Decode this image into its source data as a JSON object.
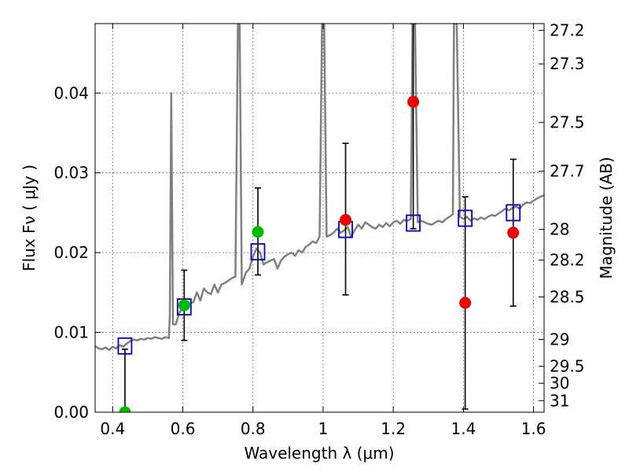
{
  "chart_data": {
    "type": "scatter",
    "title": "",
    "xlabel": "Wavelength  λ (μm)",
    "ylabel": "Flux  Fν ( μJy )",
    "ylabel_right": "Magnitude (AB)",
    "xlim": [
      0.35,
      1.63
    ],
    "ylim": [
      0.0,
      0.0487
    ],
    "grid": true,
    "x_ticks": [
      0.4,
      0.6,
      0.8,
      1.0,
      1.2,
      1.4,
      1.6
    ],
    "x_tick_labels": [
      "0.4",
      "0.6",
      "0.8",
      "1",
      "1.2",
      "1.4",
      "1.6"
    ],
    "y_ticks": [
      0.0,
      0.01,
      0.02,
      0.03,
      0.04
    ],
    "y_tick_labels": [
      "0.00",
      "0.01",
      "0.02",
      "0.03",
      "0.04"
    ],
    "right_ticks": [
      {
        "flux": 0.04785,
        "label": "27.2"
      },
      {
        "flux": 0.04365,
        "label": "27.3"
      },
      {
        "flux": 0.03631,
        "label": "27.5"
      },
      {
        "flux": 0.0302,
        "label": "27.7"
      },
      {
        "flux": 0.02291,
        "label": "28"
      },
      {
        "flux": 0.01906,
        "label": "28.2"
      },
      {
        "flux": 0.01445,
        "label": "28.5"
      },
      {
        "flux": 0.00912,
        "label": "29"
      },
      {
        "flux": 0.00575,
        "label": "29.5"
      },
      {
        "flux": 0.00363,
        "label": "30"
      },
      {
        "flux": 0.00145,
        "label": "31"
      }
    ],
    "series": [
      {
        "name": "model spectrum",
        "kind": "line",
        "color": "#808080",
        "points": [
          [
            0.35,
            0.0083
          ],
          [
            0.36,
            0.008
          ],
          [
            0.37,
            0.0079
          ],
          [
            0.38,
            0.0081
          ],
          [
            0.39,
            0.0078
          ],
          [
            0.4,
            0.0082
          ],
          [
            0.41,
            0.008
          ],
          [
            0.42,
            0.0084
          ],
          [
            0.43,
            0.0082
          ],
          [
            0.44,
            0.0086
          ],
          [
            0.45,
            0.0089
          ],
          [
            0.46,
            0.0091
          ],
          [
            0.47,
            0.009
          ],
          [
            0.48,
            0.0092
          ],
          [
            0.49,
            0.0091
          ],
          [
            0.5,
            0.0093
          ],
          [
            0.51,
            0.0092
          ],
          [
            0.52,
            0.0094
          ],
          [
            0.53,
            0.0093
          ],
          [
            0.54,
            0.0092
          ],
          [
            0.55,
            0.0094
          ],
          [
            0.56,
            0.0093
          ],
          [
            0.563,
            0.012
          ],
          [
            0.567,
            0.04
          ],
          [
            0.572,
            0.011
          ],
          [
            0.58,
            0.011
          ],
          [
            0.59,
            0.0125
          ],
          [
            0.6,
            0.013
          ],
          [
            0.61,
            0.0134
          ],
          [
            0.62,
            0.0136
          ],
          [
            0.63,
            0.0138
          ],
          [
            0.64,
            0.015
          ],
          [
            0.65,
            0.014
          ],
          [
            0.66,
            0.0155
          ],
          [
            0.67,
            0.015
          ],
          [
            0.68,
            0.0148
          ],
          [
            0.69,
            0.016
          ],
          [
            0.7,
            0.015
          ],
          [
            0.71,
            0.016
          ],
          [
            0.72,
            0.0162
          ],
          [
            0.73,
            0.0165
          ],
          [
            0.74,
            0.0168
          ],
          [
            0.75,
            0.017
          ],
          [
            0.757,
            0.0487
          ],
          [
            0.762,
            0.0487
          ],
          [
            0.768,
            0.016
          ],
          [
            0.78,
            0.0175
          ],
          [
            0.79,
            0.018
          ],
          [
            0.8,
            0.0195
          ],
          [
            0.81,
            0.0205
          ],
          [
            0.82,
            0.02
          ],
          [
            0.83,
            0.0185
          ],
          [
            0.84,
            0.0188
          ],
          [
            0.85,
            0.019
          ],
          [
            0.86,
            0.0192
          ],
          [
            0.87,
            0.018
          ],
          [
            0.88,
            0.019
          ],
          [
            0.89,
            0.0195
          ],
          [
            0.9,
            0.0198
          ],
          [
            0.91,
            0.02
          ],
          [
            0.92,
            0.0196
          ],
          [
            0.93,
            0.0203
          ],
          [
            0.94,
            0.02
          ],
          [
            0.95,
            0.0207
          ],
          [
            0.96,
            0.021
          ],
          [
            0.97,
            0.0214
          ],
          [
            0.98,
            0.0212
          ],
          [
            0.99,
            0.022
          ],
          [
            0.997,
            0.0487
          ],
          [
            1.003,
            0.0487
          ],
          [
            1.01,
            0.022
          ],
          [
            1.02,
            0.0222
          ],
          [
            1.03,
            0.0225
          ],
          [
            1.04,
            0.023
          ],
          [
            1.05,
            0.0225
          ],
          [
            1.06,
            0.0228
          ],
          [
            1.07,
            0.0232
          ],
          [
            1.08,
            0.022
          ],
          [
            1.09,
            0.0228
          ],
          [
            1.1,
            0.0235
          ],
          [
            1.11,
            0.023
          ],
          [
            1.12,
            0.0238
          ],
          [
            1.13,
            0.0235
          ],
          [
            1.14,
            0.0232
          ],
          [
            1.15,
            0.023
          ],
          [
            1.16,
            0.0235
          ],
          [
            1.17,
            0.0232
          ],
          [
            1.18,
            0.0237
          ],
          [
            1.19,
            0.0233
          ],
          [
            1.2,
            0.0238
          ],
          [
            1.21,
            0.024
          ],
          [
            1.22,
            0.0236
          ],
          [
            1.23,
            0.0241
          ],
          [
            1.24,
            0.024
          ],
          [
            1.25,
            0.0242
          ],
          [
            1.255,
            0.0487
          ],
          [
            1.262,
            0.0487
          ],
          [
            1.27,
            0.0238
          ],
          [
            1.28,
            0.024
          ],
          [
            1.29,
            0.0238
          ],
          [
            1.3,
            0.0236
          ],
          [
            1.31,
            0.0235
          ],
          [
            1.32,
            0.0238
          ],
          [
            1.33,
            0.024
          ],
          [
            1.34,
            0.0238
          ],
          [
            1.35,
            0.0242
          ],
          [
            1.36,
            0.0245
          ],
          [
            1.37,
            0.0248
          ],
          [
            1.373,
            0.0487
          ],
          [
            1.381,
            0.0487
          ],
          [
            1.39,
            0.0245
          ],
          [
            1.4,
            0.0242
          ],
          [
            1.41,
            0.0245
          ],
          [
            1.42,
            0.024
          ],
          [
            1.43,
            0.0243
          ],
          [
            1.44,
            0.0241
          ],
          [
            1.45,
            0.0244
          ],
          [
            1.46,
            0.0242
          ],
          [
            1.47,
            0.0245
          ],
          [
            1.48,
            0.0247
          ],
          [
            1.49,
            0.0246
          ],
          [
            1.5,
            0.0249
          ],
          [
            1.51,
            0.0252
          ],
          [
            1.52,
            0.0255
          ],
          [
            1.53,
            0.0253
          ],
          [
            1.54,
            0.0256
          ],
          [
            1.55,
            0.0258
          ],
          [
            1.56,
            0.0255
          ],
          [
            1.57,
            0.026
          ],
          [
            1.58,
            0.0263
          ],
          [
            1.59,
            0.0262
          ],
          [
            1.6,
            0.0265
          ],
          [
            1.61,
            0.0268
          ],
          [
            1.62,
            0.027
          ],
          [
            1.63,
            0.0272
          ]
        ]
      },
      {
        "name": "model photometry",
        "kind": "open-square",
        "color": "#0000cc",
        "points": [
          [
            0.435,
            0.0083
          ],
          [
            0.604,
            0.0132
          ],
          [
            0.814,
            0.0201
          ],
          [
            1.064,
            0.0229
          ],
          [
            1.257,
            0.0237
          ],
          [
            1.405,
            0.0243
          ],
          [
            1.542,
            0.025
          ]
        ]
      },
      {
        "name": "observed (green)",
        "kind": "filled-circle",
        "color": "#00bb00",
        "points": [
          [
            0.435,
            0.0,
            0.0079,
            0.0
          ],
          [
            0.604,
            0.0134,
            0.0178,
            0.009
          ],
          [
            0.814,
            0.0226,
            0.0281,
            0.0172
          ]
        ]
      },
      {
        "name": "observed (red)",
        "kind": "filled-circle",
        "color": "#ee0000",
        "points": [
          [
            1.064,
            0.0241,
            0.0337,
            0.0147
          ],
          [
            1.257,
            0.0389,
            0.0487,
            0.023
          ],
          [
            1.405,
            0.0137,
            0.027,
            0.0004
          ],
          [
            1.542,
            0.0225,
            0.0317,
            0.0133
          ]
        ]
      }
    ]
  }
}
